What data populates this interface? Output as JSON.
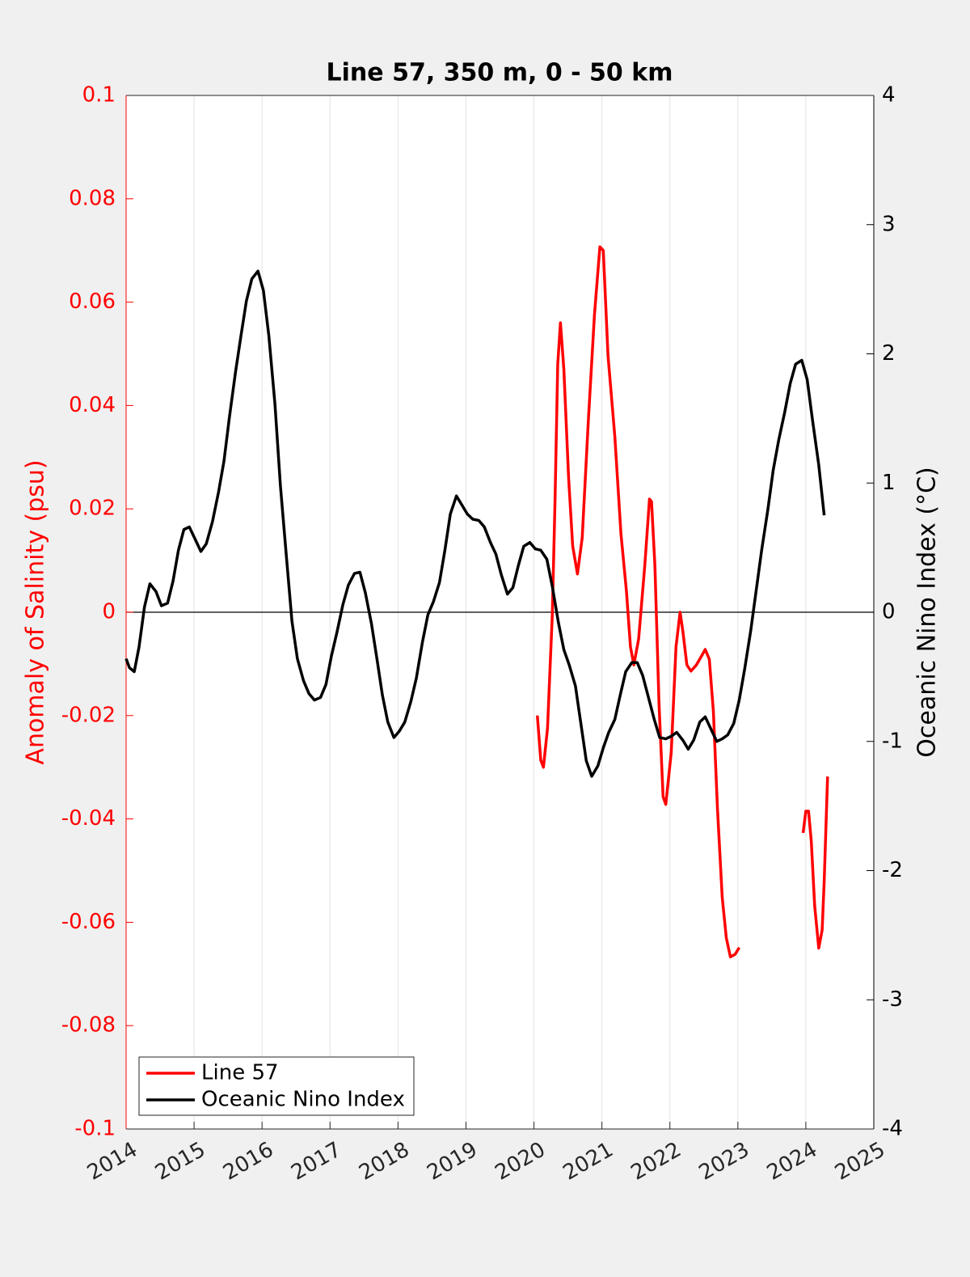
{
  "chart_data": {
    "type": "line",
    "title": "Line 57, 350 m, 0 - 50 km",
    "ylabel": "Anomaly of Salinity (psu)",
    "y2label": "Oceanic Nino Index (°C)",
    "xlim": [
      2014,
      2025
    ],
    "xticks": [
      2014,
      2015,
      2016,
      2017,
      2018,
      2019,
      2020,
      2021,
      2022,
      2023,
      2024,
      2025
    ],
    "ylim": [
      -0.1,
      0.1
    ],
    "yticks": [
      -0.1,
      -0.08,
      -0.06,
      -0.04,
      -0.02,
      0,
      0.02,
      0.04,
      0.06,
      0.08,
      0.1
    ],
    "y2lim": [
      -4,
      4
    ],
    "y2ticks": [
      -4,
      -3,
      -2,
      -1,
      0,
      1,
      2,
      3,
      4
    ],
    "xgrid": true,
    "reference_line": 0,
    "legend": "lower left",
    "y_color": "#ff0000",
    "series": [
      {
        "name": "Line 57",
        "color": "#ff0000",
        "x": [
          2020.05,
          2020.1,
          2020.14,
          2020.2,
          2020.27,
          2020.31,
          2020.35,
          2020.39,
          2020.44,
          2020.51,
          2020.57,
          2020.64,
          2020.71,
          2020.8,
          2020.89,
          2020.97,
          2021.02,
          2021.09,
          2021.19,
          2021.28,
          2021.36,
          2021.42,
          2021.47,
          2021.54,
          2021.63,
          2021.7,
          2021.73,
          2021.78,
          2021.84,
          2021.9,
          2021.94,
          2022.02,
          2022.09,
          2022.15,
          2022.19,
          2022.25,
          2022.31,
          2022.39,
          2022.46,
          2022.52,
          2022.58,
          2022.64,
          2022.7,
          2022.77,
          2022.83,
          2022.89,
          2022.96,
          2023.02,
          2023.5,
          2023.96,
          2024.0,
          2024.04,
          2024.08,
          2024.13,
          2024.19,
          2024.24,
          2024.27,
          2024.32
        ],
        "values": [
          -0.02,
          -0.0286,
          -0.03,
          -0.0224,
          -0.0005,
          0.0214,
          0.048,
          0.056,
          0.047,
          0.026,
          0.0128,
          0.0074,
          0.0144,
          0.037,
          0.0575,
          0.0707,
          0.07,
          0.0496,
          0.034,
          0.0152,
          0.0042,
          -0.0067,
          -0.0102,
          -0.0052,
          0.0089,
          0.0219,
          0.0214,
          0.0089,
          -0.0177,
          -0.0357,
          -0.0372,
          -0.0271,
          -0.0067,
          0,
          -0.0036,
          -0.0102,
          -0.0114,
          -0.0102,
          -0.0086,
          -0.0072,
          -0.0091,
          -0.0192,
          -0.038,
          -0.0552,
          -0.063,
          -0.0667,
          -0.0662,
          -0.0649,
          null,
          -0.0427,
          -0.0385,
          -0.0385,
          -0.0443,
          -0.0568,
          -0.065,
          -0.0615,
          -0.0521,
          -0.0318
        ]
      },
      {
        "name": "Oceanic Nino Index",
        "color": "#000000",
        "axis": "y2",
        "x": [
          2014.0,
          2014.05,
          2014.12,
          2014.19,
          2014.27,
          2014.35,
          2014.44,
          2014.52,
          2014.61,
          2014.69,
          2014.77,
          2014.85,
          2014.93,
          2015.02,
          2015.1,
          2015.18,
          2015.27,
          2015.36,
          2015.44,
          2015.52,
          2015.61,
          2015.69,
          2015.77,
          2015.85,
          2015.94,
          2016.02,
          2016.1,
          2016.19,
          2016.27,
          2016.36,
          2016.44,
          2016.52,
          2016.61,
          2016.69,
          2016.77,
          2016.86,
          2016.94,
          2017.02,
          2017.1,
          2017.19,
          2017.27,
          2017.36,
          2017.44,
          2017.52,
          2017.61,
          2017.69,
          2017.77,
          2017.85,
          2017.94,
          2018.02,
          2018.1,
          2018.19,
          2018.27,
          2018.36,
          2018.44,
          2018.52,
          2018.61,
          2018.69,
          2018.77,
          2018.86,
          2018.94,
          2019.02,
          2019.1,
          2019.19,
          2019.27,
          2019.36,
          2019.44,
          2019.52,
          2019.61,
          2019.69,
          2019.77,
          2019.85,
          2019.94,
          2020.02,
          2020.1,
          2020.19,
          2020.27,
          2020.36,
          2020.44,
          2020.52,
          2020.61,
          2020.69,
          2020.77,
          2020.85,
          2020.94,
          2021.02,
          2021.1,
          2021.19,
          2021.27,
          2021.35,
          2021.44,
          2021.52,
          2021.6,
          2021.69,
          2021.77,
          2021.85,
          2021.94,
          2022.02,
          2022.1,
          2022.19,
          2022.27,
          2022.35,
          2022.44,
          2022.52,
          2022.6,
          2022.69,
          2022.77,
          2022.85,
          2022.94,
          2023.02,
          2023.1,
          2023.19,
          2023.27,
          2023.35,
          2023.44,
          2023.52,
          2023.6,
          2023.69,
          2023.77,
          2023.85,
          2023.94,
          2024.02,
          2024.1,
          2024.19,
          2024.27
        ],
        "values": [
          -0.36,
          -0.43,
          -0.46,
          -0.27,
          0.04,
          0.22,
          0.16,
          0.05,
          0.07,
          0.24,
          0.48,
          0.64,
          0.66,
          0.56,
          0.47,
          0.53,
          0.7,
          0.93,
          1.17,
          1.51,
          1.86,
          2.14,
          2.41,
          2.58,
          2.64,
          2.49,
          2.14,
          1.61,
          0.98,
          0.42,
          -0.07,
          -0.36,
          -0.53,
          -0.63,
          -0.68,
          -0.66,
          -0.56,
          -0.34,
          -0.16,
          0.06,
          0.21,
          0.3,
          0.31,
          0.15,
          -0.09,
          -0.36,
          -0.64,
          -0.85,
          -0.97,
          -0.92,
          -0.85,
          -0.69,
          -0.51,
          -0.23,
          -0.02,
          0.08,
          0.23,
          0.48,
          0.76,
          0.9,
          0.83,
          0.76,
          0.72,
          0.71,
          0.66,
          0.54,
          0.45,
          0.29,
          0.14,
          0.19,
          0.36,
          0.51,
          0.54,
          0.49,
          0.48,
          0.41,
          0.2,
          -0.08,
          -0.29,
          -0.41,
          -0.57,
          -0.86,
          -1.15,
          -1.27,
          -1.19,
          -1.05,
          -0.93,
          -0.83,
          -0.64,
          -0.46,
          -0.39,
          -0.39,
          -0.49,
          -0.67,
          -0.83,
          -0.97,
          -0.98,
          -0.96,
          -0.93,
          -0.99,
          -1.06,
          -0.99,
          -0.85,
          -0.81,
          -0.9,
          -1.0,
          -0.98,
          -0.95,
          -0.86,
          -0.68,
          -0.44,
          -0.14,
          0.17,
          0.48,
          0.79,
          1.1,
          1.33,
          1.55,
          1.77,
          1.92,
          1.95,
          1.8,
          1.48,
          1.14,
          0.75
        ]
      }
    ]
  }
}
